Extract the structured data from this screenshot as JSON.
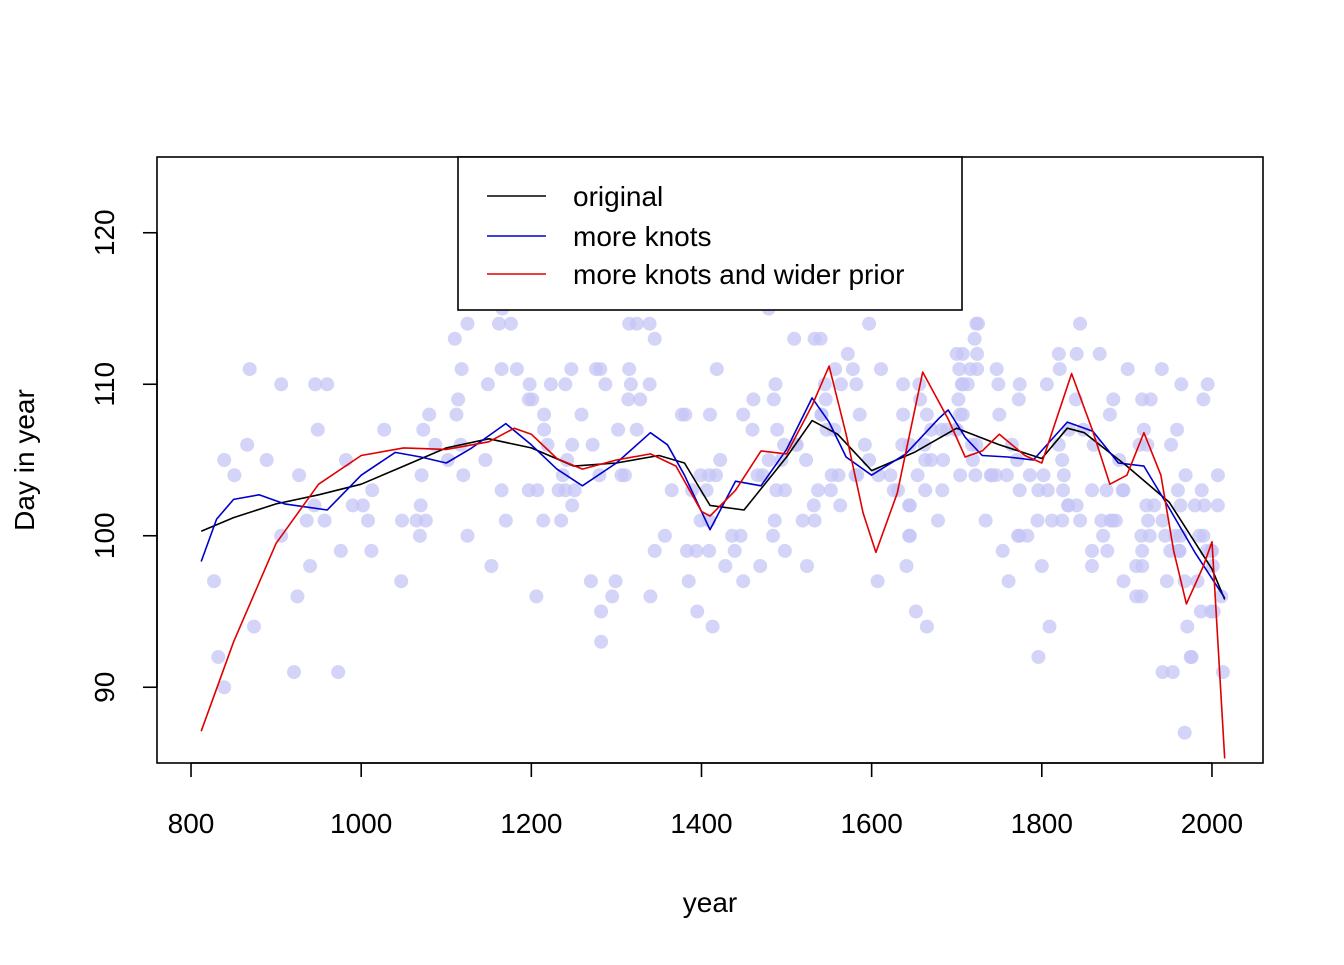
{
  "chart_data": {
    "type": "scatter",
    "title": "",
    "xlabel": "year",
    "ylabel": "Day in year",
    "xlim": [
      760,
      2060
    ],
    "ylim": [
      85,
      125
    ],
    "xticks": [
      800,
      1000,
      1200,
      1400,
      1600,
      1800,
      2000
    ],
    "yticks": [
      90,
      100,
      110,
      120
    ],
    "grid": false,
    "legend_position": "top",
    "point_color": "#c6c6f7",
    "legend": [
      {
        "label": "original",
        "color": "#000000"
      },
      {
        "label": "more knots",
        "color": "#0000cc"
      },
      {
        "label": "more knots and wider prior",
        "color": "#e00000"
      }
    ],
    "series": [
      {
        "name": "original",
        "color": "#000000",
        "x": [
          812,
          850,
          900,
          950,
          1000,
          1050,
          1100,
          1150,
          1200,
          1250,
          1300,
          1350,
          1380,
          1410,
          1450,
          1500,
          1530,
          1560,
          1600,
          1650,
          1700,
          1750,
          1800,
          1830,
          1850,
          1900,
          1950,
          2000,
          2015
        ],
        "y": [
          100.3,
          101.2,
          102.1,
          102.7,
          103.4,
          104.6,
          105.8,
          106.4,
          105.8,
          104.6,
          104.8,
          105.3,
          104.8,
          102.0,
          101.7,
          105.2,
          107.6,
          106.7,
          104.3,
          105.5,
          107.1,
          106.0,
          105.1,
          107.1,
          106.8,
          104.6,
          102.2,
          97.8,
          95.8
        ]
      },
      {
        "name": "more knots",
        "color": "#0000cc",
        "x": [
          812,
          830,
          850,
          880,
          910,
          960,
          1000,
          1040,
          1070,
          1100,
          1130,
          1170,
          1200,
          1230,
          1260,
          1300,
          1340,
          1360,
          1380,
          1410,
          1440,
          1470,
          1500,
          1530,
          1550,
          1570,
          1600,
          1640,
          1680,
          1690,
          1710,
          1730,
          1760,
          1790,
          1830,
          1860,
          1890,
          1920,
          1950,
          1980,
          2015
        ],
        "y": [
          98.3,
          101.1,
          102.4,
          102.7,
          102.1,
          101.7,
          104.0,
          105.5,
          105.2,
          104.8,
          105.8,
          107.4,
          106.0,
          104.4,
          103.3,
          104.8,
          106.8,
          106.0,
          104.0,
          100.4,
          103.6,
          103.3,
          105.7,
          109.1,
          107.5,
          105.2,
          104.0,
          105.4,
          107.8,
          108.3,
          106.5,
          105.3,
          105.2,
          105.0,
          107.5,
          106.9,
          104.8,
          104.6,
          101.8,
          98.9,
          95.9
        ]
      },
      {
        "name": "more knots and wider prior",
        "color": "#e00000",
        "x": [
          812,
          850,
          900,
          950,
          1000,
          1050,
          1100,
          1150,
          1180,
          1200,
          1230,
          1260,
          1300,
          1340,
          1370,
          1400,
          1410,
          1440,
          1470,
          1500,
          1530,
          1550,
          1570,
          1590,
          1605,
          1630,
          1660,
          1690,
          1710,
          1730,
          1750,
          1780,
          1800,
          1835,
          1860,
          1880,
          1900,
          1920,
          1940,
          1955,
          1970,
          1990,
          2000,
          2015
        ],
        "y": [
          87.1,
          93.0,
          99.5,
          103.4,
          105.3,
          105.8,
          105.7,
          106.2,
          107.1,
          106.7,
          105.1,
          104.4,
          105.0,
          105.4,
          104.6,
          101.6,
          101.3,
          103.0,
          105.6,
          105.4,
          108.6,
          111.2,
          106.7,
          101.5,
          98.9,
          102.8,
          110.8,
          107.7,
          105.2,
          105.6,
          106.7,
          105.3,
          104.8,
          110.7,
          106.9,
          103.4,
          104.0,
          106.8,
          104.0,
          99.0,
          95.5,
          98.0,
          99.6,
          85.3
        ]
      }
    ],
    "points_count": 360
  }
}
